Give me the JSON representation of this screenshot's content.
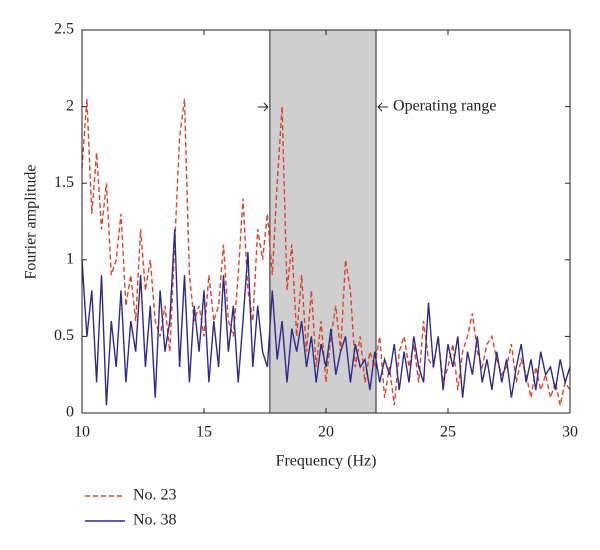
{
  "chart_data": {
    "type": "line",
    "xlabel": "Frequency (Hz)",
    "ylabel": "Fourier amplitude",
    "annotation": "Operating range",
    "shaded_region": [
      17.7,
      22.05
    ],
    "x": [
      10.0,
      10.2,
      10.4,
      10.6,
      10.8,
      11.0,
      11.2,
      11.4,
      11.6,
      11.8,
      12.0,
      12.2,
      12.4,
      12.6,
      12.8,
      13.0,
      13.2,
      13.4,
      13.6,
      13.8,
      14.0,
      14.2,
      14.4,
      14.6,
      14.8,
      15.0,
      15.2,
      15.4,
      15.6,
      15.8,
      16.0,
      16.2,
      16.4,
      16.6,
      16.8,
      17.0,
      17.2,
      17.4,
      17.6,
      17.8,
      18.0,
      18.2,
      18.4,
      18.6,
      18.8,
      19.0,
      19.2,
      19.4,
      19.6,
      19.8,
      20.0,
      20.2,
      20.4,
      20.6,
      20.8,
      21.0,
      21.2,
      21.4,
      21.6,
      21.8,
      22.0,
      22.2,
      22.4,
      22.6,
      22.8,
      23.0,
      23.2,
      23.4,
      23.6,
      23.8,
      24.0,
      24.2,
      24.4,
      24.6,
      24.8,
      25.0,
      25.2,
      25.4,
      25.6,
      25.8,
      26.0,
      26.2,
      26.4,
      26.6,
      26.8,
      27.0,
      27.2,
      27.4,
      27.6,
      27.8,
      28.0,
      28.2,
      28.4,
      28.6,
      28.8,
      29.0,
      29.2,
      29.4,
      29.6,
      29.8,
      30.0
    ],
    "series": [
      {
        "name": "No. 23",
        "color": "#d9442a",
        "dash": true,
        "values": [
          1.6,
          2.05,
          1.3,
          1.7,
          1.2,
          1.5,
          0.9,
          1.0,
          1.3,
          0.7,
          0.9,
          0.6,
          1.2,
          0.8,
          1.0,
          0.6,
          0.5,
          0.7,
          0.4,
          1.1,
          1.8,
          2.05,
          0.9,
          0.6,
          0.7,
          0.5,
          0.9,
          0.6,
          0.7,
          1.1,
          0.6,
          0.5,
          0.9,
          1.4,
          0.8,
          0.6,
          1.2,
          1.0,
          1.3,
          0.9,
          1.5,
          2.0,
          0.8,
          1.1,
          0.5,
          0.9,
          0.4,
          0.8,
          0.3,
          0.6,
          0.2,
          0.5,
          0.7,
          0.4,
          1.0,
          0.8,
          0.3,
          0.5,
          0.2,
          0.4,
          0.3,
          0.5,
          0.1,
          0.3,
          0.05,
          0.4,
          0.5,
          0.3,
          0.45,
          0.2,
          0.6,
          0.35,
          0.3,
          0.5,
          0.2,
          0.3,
          0.45,
          0.15,
          0.4,
          0.5,
          0.65,
          0.4,
          0.3,
          0.45,
          0.5,
          0.35,
          0.25,
          0.3,
          0.45,
          0.2,
          0.35,
          0.25,
          0.1,
          0.3,
          0.15,
          0.25,
          0.1,
          0.2,
          0.05,
          0.2,
          0.15
        ]
      },
      {
        "name": "No. 38",
        "color": "#2e2a8c",
        "dash": false,
        "values": [
          1.0,
          0.5,
          0.8,
          0.2,
          0.9,
          0.05,
          0.6,
          0.3,
          0.8,
          0.2,
          0.6,
          0.4,
          0.9,
          0.3,
          0.7,
          0.1,
          0.8,
          0.4,
          0.6,
          1.2,
          0.3,
          0.9,
          0.2,
          0.7,
          0.4,
          0.8,
          0.2,
          0.6,
          0.3,
          0.9,
          0.4,
          0.7,
          0.2,
          0.6,
          1.05,
          0.3,
          0.7,
          0.4,
          0.3,
          0.8,
          0.35,
          0.6,
          0.2,
          0.55,
          0.4,
          0.6,
          0.3,
          0.5,
          0.2,
          0.45,
          0.3,
          0.55,
          0.25,
          0.4,
          0.5,
          0.2,
          0.45,
          0.3,
          0.35,
          0.15,
          0.4,
          0.2,
          0.35,
          0.25,
          0.45,
          0.15,
          0.4,
          0.2,
          0.5,
          0.3,
          0.2,
          0.72,
          0.3,
          0.5,
          0.15,
          0.45,
          0.3,
          0.5,
          0.1,
          0.4,
          0.25,
          0.5,
          0.2,
          0.35,
          0.15,
          0.4,
          0.2,
          0.35,
          0.1,
          0.3,
          0.45,
          0.2,
          0.35,
          0.15,
          0.4,
          0.25,
          0.3,
          0.15,
          0.35,
          0.2,
          0.3
        ]
      }
    ],
    "xlim": [
      10,
      30
    ],
    "xticks": [
      10,
      15,
      20,
      25,
      30
    ],
    "ylim": [
      0,
      2.5
    ],
    "yticks": [
      0,
      0.5,
      1,
      1.5,
      2,
      2.5
    ],
    "grid": false
  }
}
